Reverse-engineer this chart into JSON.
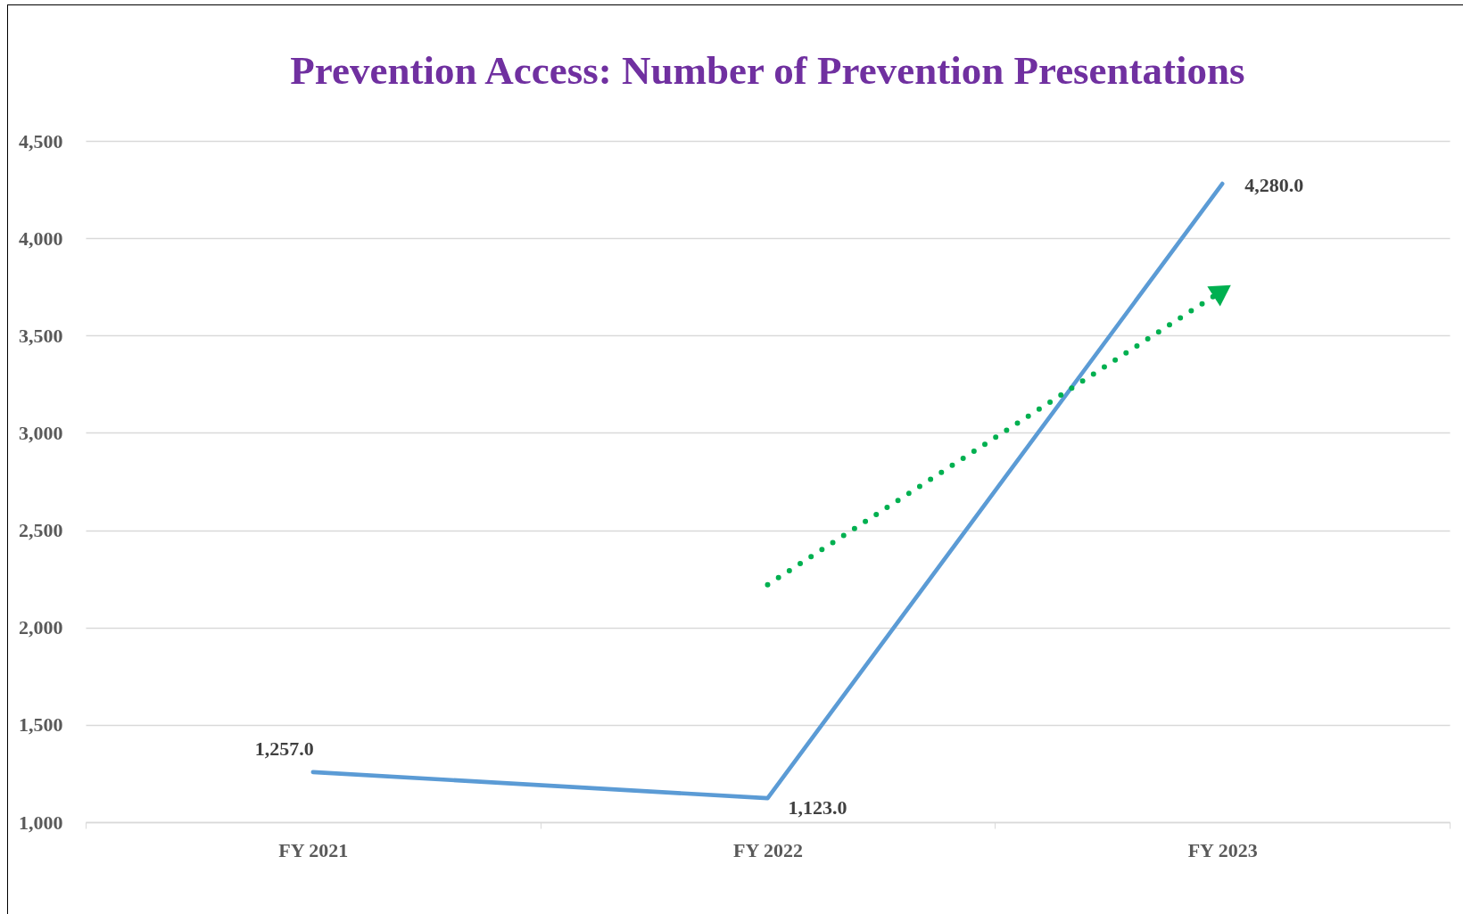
{
  "chart_data": {
    "type": "line",
    "title": "Prevention Access: Number of Prevention Presentations",
    "categories": [
      "FY 2021",
      "FY 2022",
      "FY 2023"
    ],
    "series": [
      {
        "color": "#5b9bd5",
        "values": [
          1257,
          1123,
          4280
        ],
        "value_labels": [
          "1,257.0",
          "1,123.0",
          "4,280.0"
        ]
      },
      {
        "type": "line",
        "line_style": "dotted",
        "color": "#00b050",
        "values": [
          null,
          2220,
          3730
        ]
      }
    ],
    "ylim": [
      1000,
      4500
    ],
    "yticks": [
      {
        "value": 1000,
        "label": "1,000"
      },
      {
        "value": 1500,
        "label": "1,500"
      },
      {
        "value": 2000,
        "label": "2,000"
      },
      {
        "value": 2500,
        "label": "2,500"
      },
      {
        "value": 3000,
        "label": "3,000"
      },
      {
        "value": 3500,
        "label": "3,500"
      },
      {
        "value": 4000,
        "label": "4,000"
      },
      {
        "value": 4500,
        "label": "4,500"
      }
    ],
    "grid": "y"
  }
}
